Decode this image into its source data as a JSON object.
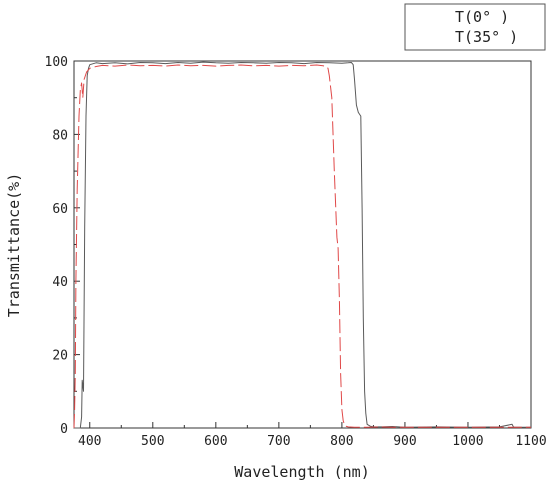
{
  "chart_data": {
    "type": "line",
    "xlabel": "Wavelength (nm)",
    "ylabel": "Transmittance(%)",
    "xlim": [
      375,
      1100
    ],
    "ylim": [
      0,
      100
    ],
    "x_ticks": [
      400,
      500,
      600,
      700,
      800,
      900,
      1000,
      1100
    ],
    "y_ticks": [
      0,
      20,
      40,
      60,
      80,
      100
    ],
    "grid": false,
    "legend_position": "top-right",
    "series": [
      {
        "name": "T(0° )",
        "color": "#5a5a5a",
        "dash": "solid",
        "x": [
          375,
          380,
          383,
          385,
          387,
          388,
          390,
          392,
          394,
          396,
          398,
          400,
          410,
          420,
          440,
          460,
          480,
          500,
          520,
          540,
          560,
          580,
          600,
          620,
          640,
          660,
          680,
          700,
          720,
          740,
          760,
          780,
          800,
          810,
          815,
          818,
          820,
          823,
          826,
          830,
          832,
          834,
          836,
          838,
          840,
          845,
          850,
          860,
          880,
          900,
          950,
          1000,
          1050,
          1070,
          1072,
          1074,
          1100
        ],
        "y": [
          0,
          0,
          0,
          0,
          3,
          13,
          10,
          55,
          85,
          96,
          98,
          99,
          99.5,
          99.3,
          99.5,
          99.2,
          99.6,
          99.5,
          99.3,
          99.6,
          99.4,
          99.7,
          99.5,
          99.4,
          99.6,
          99.5,
          99.4,
          99.6,
          99.5,
          99.3,
          99.6,
          99.5,
          99.4,
          99.5,
          99.6,
          99.0,
          95,
          88,
          86,
          85,
          60,
          30,
          10,
          4,
          1,
          0.5,
          0.3,
          0.3,
          0.4,
          0.2,
          0.3,
          0.2,
          0.3,
          1.0,
          0.3,
          0.2,
          0.2
        ]
      },
      {
        "name": "T(35° )",
        "color": "#e04848",
        "dash": "dashed",
        "x": [
          375,
          376,
          377,
          378,
          380,
          383,
          385,
          387,
          389,
          391,
          395,
          400,
          410,
          420,
          440,
          460,
          480,
          500,
          520,
          540,
          560,
          580,
          600,
          620,
          640,
          660,
          680,
          700,
          720,
          740,
          760,
          770,
          775,
          778,
          780,
          784,
          788,
          792,
          794,
          796,
          798,
          800,
          802,
          804,
          806,
          810,
          820,
          840,
          860,
          880,
          900,
          950,
          1000,
          1050,
          1100
        ],
        "y": [
          0,
          5,
          15,
          40,
          65,
          85,
          92,
          94,
          90,
          95,
          97,
          98,
          98.5,
          98.8,
          98.6,
          98.9,
          98.7,
          98.8,
          98.6,
          98.9,
          98.7,
          98.8,
          98.6,
          98.8,
          98.9,
          98.7,
          98.8,
          98.6,
          98.8,
          98.7,
          98.9,
          98.7,
          98.5,
          98.0,
          96,
          90,
          70,
          52,
          49,
          35,
          15,
          5,
          2,
          1,
          0.5,
          0.3,
          0.2,
          0.2,
          0.3,
          0.2,
          0.2,
          0.2,
          0.2,
          0.2,
          0.2
        ]
      }
    ]
  }
}
